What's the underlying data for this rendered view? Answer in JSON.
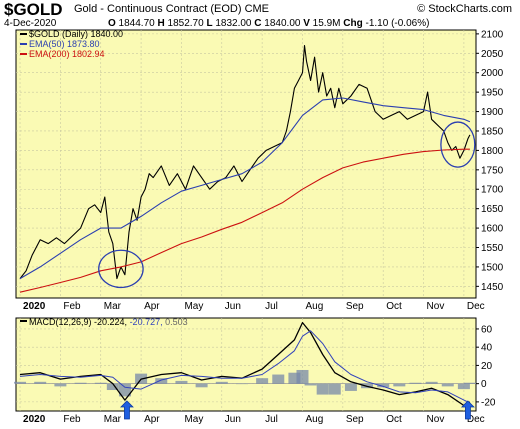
{
  "header": {
    "symbol": "$GOLD",
    "name": "Gold - Continuous Contract (EOD)",
    "exchange": "CME",
    "brand": "© StockCharts.com",
    "date": "4-Dec-2020",
    "ohlc": [
      {
        "k": "O",
        "v": "1844.70"
      },
      {
        "k": "H",
        "v": "1852.70"
      },
      {
        "k": "L",
        "v": "1832.00"
      },
      {
        "k": "C",
        "v": "1840.00"
      },
      {
        "k": "V",
        "v": "15.9M"
      },
      {
        "k": "Chg",
        "v": "-1.10 (-0.06%)"
      }
    ]
  },
  "colors": {
    "panel_bg": "#fafab4",
    "price": "#000000",
    "ema50": "#2b3fb0",
    "ema200": "#cc1111",
    "macd": "#000000",
    "signal": "#3344bb",
    "hist": "#7788aa",
    "circle": "#2b3fb0",
    "arrow": "#1f5fe0",
    "grid": "#c8c8a0"
  },
  "chart_data": [
    {
      "type": "line",
      "panel": "price",
      "x_labels": [
        "2020",
        "Feb",
        "Mar",
        "Apr",
        "May",
        "Jun",
        "Jul",
        "Aug",
        "Sep",
        "Oct",
        "Nov",
        "Dec"
      ],
      "x_label_pos": [
        0,
        1,
        2,
        3,
        4,
        5,
        6,
        7,
        8,
        9,
        10,
        11
      ],
      "x_range": [
        -0.1,
        11.3
      ],
      "ylim": [
        1420,
        2110
      ],
      "y_ticks": [
        1450,
        1500,
        1550,
        1600,
        1650,
        1700,
        1750,
        1800,
        1850,
        1900,
        1950,
        2000,
        2050,
        2100
      ],
      "legend": [
        {
          "label": "$GOLD (Daily) 1840.00",
          "series": "price"
        },
        {
          "label": "EMA(50) 1873.80",
          "series": "ema50"
        },
        {
          "label": "EMA(200) 1802.94",
          "series": "ema200"
        }
      ],
      "series": [
        {
          "key": "price",
          "x": [
            0.0,
            0.15,
            0.3,
            0.5,
            0.7,
            0.9,
            1.1,
            1.3,
            1.5,
            1.7,
            1.85,
            2.0,
            2.1,
            2.2,
            2.3,
            2.4,
            2.5,
            2.6,
            2.7,
            2.8,
            2.9,
            3.0,
            3.1,
            3.2,
            3.3,
            3.5,
            3.7,
            3.9,
            4.1,
            4.3,
            4.5,
            4.7,
            4.9,
            5.1,
            5.3,
            5.5,
            5.7,
            5.9,
            6.1,
            6.3,
            6.5,
            6.6,
            6.7,
            6.8,
            6.9,
            7.0,
            7.05,
            7.1,
            7.2,
            7.3,
            7.4,
            7.5,
            7.6,
            7.7,
            7.8,
            7.9,
            8.0,
            8.2,
            8.4,
            8.6,
            8.8,
            9.0,
            9.2,
            9.4,
            9.6,
            9.8,
            10.0,
            10.1,
            10.2,
            10.3,
            10.4,
            10.5,
            10.6,
            10.7,
            10.8,
            10.9,
            11.0,
            11.1,
            11.15
          ],
          "y": [
            1470,
            1490,
            1530,
            1570,
            1560,
            1575,
            1560,
            1580,
            1600,
            1650,
            1660,
            1640,
            1680,
            1590,
            1560,
            1470,
            1500,
            1480,
            1590,
            1650,
            1620,
            1680,
            1700,
            1740,
            1730,
            1760,
            1710,
            1740,
            1700,
            1760,
            1730,
            1700,
            1720,
            1730,
            1760,
            1720,
            1750,
            1780,
            1800,
            1810,
            1820,
            1850,
            1900,
            1960,
            1980,
            2000,
            2070,
            2030,
            1980,
            2040,
            1950,
            2000,
            1940,
            1960,
            1910,
            1960,
            1920,
            1940,
            1970,
            1960,
            1900,
            1880,
            1890,
            1900,
            1880,
            1890,
            1900,
            1950,
            1880,
            1870,
            1860,
            1850,
            1820,
            1800,
            1810,
            1780,
            1800,
            1830,
            1840
          ]
        },
        {
          "key": "ema50",
          "x": [
            0.0,
            0.5,
            1.0,
            1.5,
            2.0,
            2.5,
            3.0,
            3.5,
            4.0,
            4.5,
            5.0,
            5.5,
            6.0,
            6.5,
            7.0,
            7.5,
            8.0,
            8.5,
            9.0,
            9.5,
            10.0,
            10.5,
            11.0,
            11.15
          ],
          "y": [
            1470,
            1500,
            1535,
            1570,
            1600,
            1600,
            1630,
            1665,
            1695,
            1710,
            1725,
            1740,
            1770,
            1820,
            1890,
            1930,
            1935,
            1925,
            1915,
            1910,
            1905,
            1890,
            1880,
            1874
          ]
        },
        {
          "key": "ema200",
          "x": [
            0.0,
            0.5,
            1.0,
            1.5,
            2.0,
            2.5,
            3.0,
            3.5,
            4.0,
            4.5,
            5.0,
            5.5,
            6.0,
            6.5,
            7.0,
            7.5,
            8.0,
            8.5,
            9.0,
            9.5,
            10.0,
            10.5,
            11.0,
            11.15
          ],
          "y": [
            1435,
            1447,
            1460,
            1473,
            1490,
            1500,
            1513,
            1537,
            1560,
            1577,
            1597,
            1615,
            1640,
            1665,
            1700,
            1730,
            1755,
            1770,
            1780,
            1790,
            1797,
            1801,
            1803,
            1803
          ]
        }
      ]
    },
    {
      "type": "line",
      "panel": "macd",
      "x_labels": [
        "2020",
        "Feb",
        "Mar",
        "Apr",
        "May",
        "Jun",
        "Jul",
        "Aug",
        "Sep",
        "Oct",
        "Nov",
        "Dec"
      ],
      "x_label_pos": [
        0,
        1,
        2,
        3,
        4,
        5,
        6,
        7,
        8,
        9,
        10,
        11
      ],
      "x_range": [
        -0.1,
        11.3
      ],
      "ylim": [
        -30,
        72
      ],
      "y_ticks": [
        -20,
        0,
        20,
        40,
        60
      ],
      "legend_text": "MACD(12,26,9)",
      "legend_values": [
        "-20.224,",
        "-20.727,",
        "0.503"
      ],
      "series": [
        {
          "key": "macd",
          "x": [
            0.0,
            0.5,
            1.0,
            1.5,
            2.0,
            2.3,
            2.6,
            3.0,
            3.5,
            4.0,
            4.5,
            5.0,
            5.5,
            6.0,
            6.4,
            6.8,
            7.0,
            7.2,
            7.5,
            7.8,
            8.2,
            8.6,
            9.0,
            9.4,
            9.8,
            10.2,
            10.6,
            11.0,
            11.15
          ],
          "y": [
            10,
            12,
            5,
            8,
            10,
            0,
            -18,
            5,
            10,
            12,
            4,
            8,
            6,
            16,
            32,
            48,
            67,
            56,
            32,
            12,
            2,
            -3,
            -7,
            -12,
            -9,
            -5,
            -12,
            -24,
            -20
          ]
        },
        {
          "key": "signal",
          "x": [
            0.0,
            0.5,
            1.0,
            1.5,
            2.0,
            2.3,
            2.6,
            3.0,
            3.5,
            4.0,
            4.5,
            5.0,
            5.5,
            6.0,
            6.4,
            6.8,
            7.0,
            7.2,
            7.5,
            7.8,
            8.2,
            8.6,
            9.0,
            9.4,
            9.8,
            10.2,
            10.6,
            11.0,
            11.15
          ],
          "y": [
            8,
            10,
            8,
            7,
            9,
            7,
            -4,
            -6,
            4,
            9,
            8,
            6,
            6,
            10,
            22,
            36,
            52,
            58,
            44,
            24,
            10,
            2,
            -3,
            -9,
            -10,
            -7,
            -9,
            -18,
            -21
          ]
        }
      ],
      "histogram": [
        {
          "x": 0.0,
          "v": 2
        },
        {
          "x": 0.5,
          "v": 2
        },
        {
          "x": 1.0,
          "v": -3
        },
        {
          "x": 1.5,
          "v": 1
        },
        {
          "x": 2.0,
          "v": 1
        },
        {
          "x": 2.3,
          "v": -7
        },
        {
          "x": 2.6,
          "v": -14
        },
        {
          "x": 3.0,
          "v": 11
        },
        {
          "x": 3.5,
          "v": 6
        },
        {
          "x": 4.0,
          "v": 3
        },
        {
          "x": 4.5,
          "v": -4
        },
        {
          "x": 5.0,
          "v": 2
        },
        {
          "x": 5.5,
          "v": 0
        },
        {
          "x": 6.0,
          "v": 6
        },
        {
          "x": 6.4,
          "v": 10
        },
        {
          "x": 6.8,
          "v": 12
        },
        {
          "x": 7.0,
          "v": 15
        },
        {
          "x": 7.2,
          "v": -2
        },
        {
          "x": 7.5,
          "v": -12
        },
        {
          "x": 7.8,
          "v": -12
        },
        {
          "x": 8.2,
          "v": -8
        },
        {
          "x": 8.6,
          "v": -5
        },
        {
          "x": 9.0,
          "v": -4
        },
        {
          "x": 9.4,
          "v": -3
        },
        {
          "x": 9.8,
          "v": 1
        },
        {
          "x": 10.2,
          "v": 2
        },
        {
          "x": 10.6,
          "v": -3
        },
        {
          "x": 11.0,
          "v": -6
        },
        {
          "x": 11.15,
          "v": 1
        }
      ]
    }
  ],
  "annotations": {
    "circles": [
      {
        "x": 2.5,
        "y": 1495,
        "rx_units": 0.55,
        "ry_units": 48
      },
      {
        "x": 10.85,
        "y": 1815,
        "rx_units": 0.42,
        "ry_units": 58
      }
    ],
    "arrows": [
      {
        "x": 2.65,
        "name": "buy-arrow-april"
      },
      {
        "x": 11.1,
        "name": "buy-arrow-december"
      }
    ]
  }
}
